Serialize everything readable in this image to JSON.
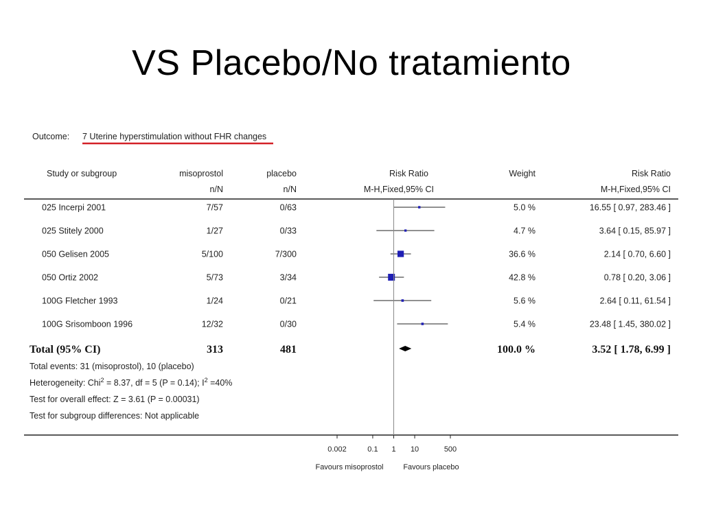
{
  "slide": {
    "title": "VS Placebo/No tratamiento"
  },
  "header": {
    "outcome_label": "Outcome:",
    "outcome_text": "7 Uterine hyperstimulation without FHR changes",
    "underline_color": "#d32027"
  },
  "columns": {
    "study": "Study or subgroup",
    "miso": "misoprostol",
    "miso_sub": "n/N",
    "placebo": "placebo",
    "placebo_sub": "n/N",
    "rr_plot": "Risk Ratio",
    "rr_plot_sub": "M-H,Fixed,95% CI",
    "weight": "Weight",
    "rr_text": "Risk Ratio",
    "rr_text_sub": "M-H,Fixed,95% CI"
  },
  "total": {
    "label": "Total (95% CI)",
    "miso": "313",
    "placebo": "481",
    "weight": "100.0 %",
    "ci_text": "3.52 [ 1.78, 6.99 ]"
  },
  "footnotes": {
    "events": "Total events: 31 (misoprostol), 10 (placebo)",
    "heterogeneity_a": "Heterogeneity: Chi",
    "heterogeneity_sup1": "2",
    "heterogeneity_b": " = 8.37, df = 5 (P = 0.14); I",
    "heterogeneity_sup2": "2",
    "heterogeneity_c": " =40%",
    "overall": "Test for overall effect: Z = 3.61 (P = 0.00031)",
    "subgroup": "Test for subgroup differences: Not applicable"
  },
  "axis": {
    "favours_left": "Favours misoprostol",
    "favours_right": "Favours placebo"
  },
  "colors": {
    "marker": "#1f1fb4",
    "line": "#222222",
    "reference_line": "#888888"
  },
  "chart_data": {
    "type": "forest",
    "x_scale": "log",
    "xlim": [
      0.002,
      500
    ],
    "ticks": [
      {
        "value": 0.002,
        "label": "0.002"
      },
      {
        "value": 0.1,
        "label": "0.1"
      },
      {
        "value": 1,
        "label": "1"
      },
      {
        "value": 10,
        "label": "10"
      },
      {
        "value": 500,
        "label": "500"
      }
    ],
    "studies": [
      {
        "name": "025 Incerpi 2001",
        "miso": "7/57",
        "placebo": "0/63",
        "rr": 16.55,
        "lo": 0.97,
        "hi": 283.46,
        "weight": 5.0,
        "weight_text": "5.0 %",
        "ci_text": "16.55 [ 0.97, 283.46 ]"
      },
      {
        "name": "025 Stitely 2000",
        "miso": "1/27",
        "placebo": "0/33",
        "rr": 3.64,
        "lo": 0.15,
        "hi": 85.97,
        "weight": 4.7,
        "weight_text": "4.7 %",
        "ci_text": "3.64 [ 0.15, 85.97 ]"
      },
      {
        "name": "050 Gelisen 2005",
        "miso": "5/100",
        "placebo": "7/300",
        "rr": 2.14,
        "lo": 0.7,
        "hi": 6.6,
        "weight": 36.6,
        "weight_text": "36.6 %",
        "ci_text": "2.14 [ 0.70, 6.60 ]"
      },
      {
        "name": "050 Ortiz 2002",
        "miso": "5/73",
        "placebo": "3/34",
        "rr": 0.78,
        "lo": 0.2,
        "hi": 3.06,
        "weight": 42.8,
        "weight_text": "42.8 %",
        "ci_text": "0.78 [ 0.20, 3.06 ]"
      },
      {
        "name": "100G Fletcher 1993",
        "miso": "1/24",
        "placebo": "0/21",
        "rr": 2.64,
        "lo": 0.11,
        "hi": 61.54,
        "weight": 5.6,
        "weight_text": "5.6 %",
        "ci_text": "2.64 [ 0.11, 61.54 ]"
      },
      {
        "name": "100G Srisomboon 1996",
        "miso": "12/32",
        "placebo": "0/30",
        "rr": 23.48,
        "lo": 1.45,
        "hi": 380.02,
        "weight": 5.4,
        "weight_text": "5.4 %",
        "ci_text": "23.48 [ 1.45, 380.02 ]"
      }
    ],
    "pooled": {
      "rr": 3.52,
      "lo": 1.78,
      "hi": 6.99
    }
  }
}
